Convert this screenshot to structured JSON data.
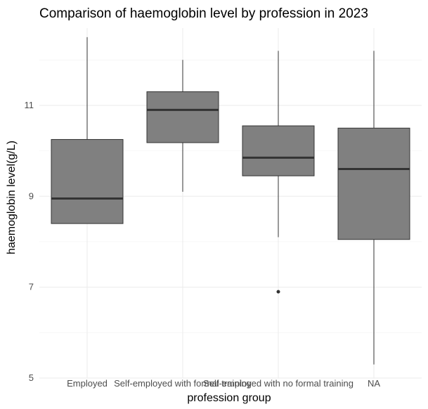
{
  "chart_data": {
    "type": "boxplot",
    "title": "Comparison of haemoglobin level by profession in 2023",
    "xlabel": "profession group",
    "ylabel": "haemoglobin level(g/L)",
    "ylim": [
      5,
      12.7
    ],
    "yticks": [
      5,
      7,
      9,
      11
    ],
    "grid": true,
    "box_color": "#808080",
    "median_color": "#333333",
    "categories": [
      "Employed",
      "Self-employed with formal training",
      "Self-employed with no formal training",
      "NA"
    ],
    "boxes": [
      {
        "category": "Employed",
        "min": 8.4,
        "q1": 8.4,
        "median": 8.95,
        "q3": 10.25,
        "max": 12.5,
        "outliers": []
      },
      {
        "category": "Self-employed with formal training",
        "min": 9.1,
        "q1": 10.18,
        "median": 10.9,
        "q3": 11.3,
        "max": 12.0,
        "outliers": []
      },
      {
        "category": "Self-employed with no formal training",
        "min": 8.1,
        "q1": 9.45,
        "median": 9.85,
        "q3": 10.55,
        "max": 12.2,
        "outliers": [
          6.9
        ]
      },
      {
        "category": "NA",
        "min": 5.3,
        "q1": 8.05,
        "median": 9.6,
        "q3": 10.5,
        "max": 12.2,
        "outliers": []
      }
    ]
  }
}
